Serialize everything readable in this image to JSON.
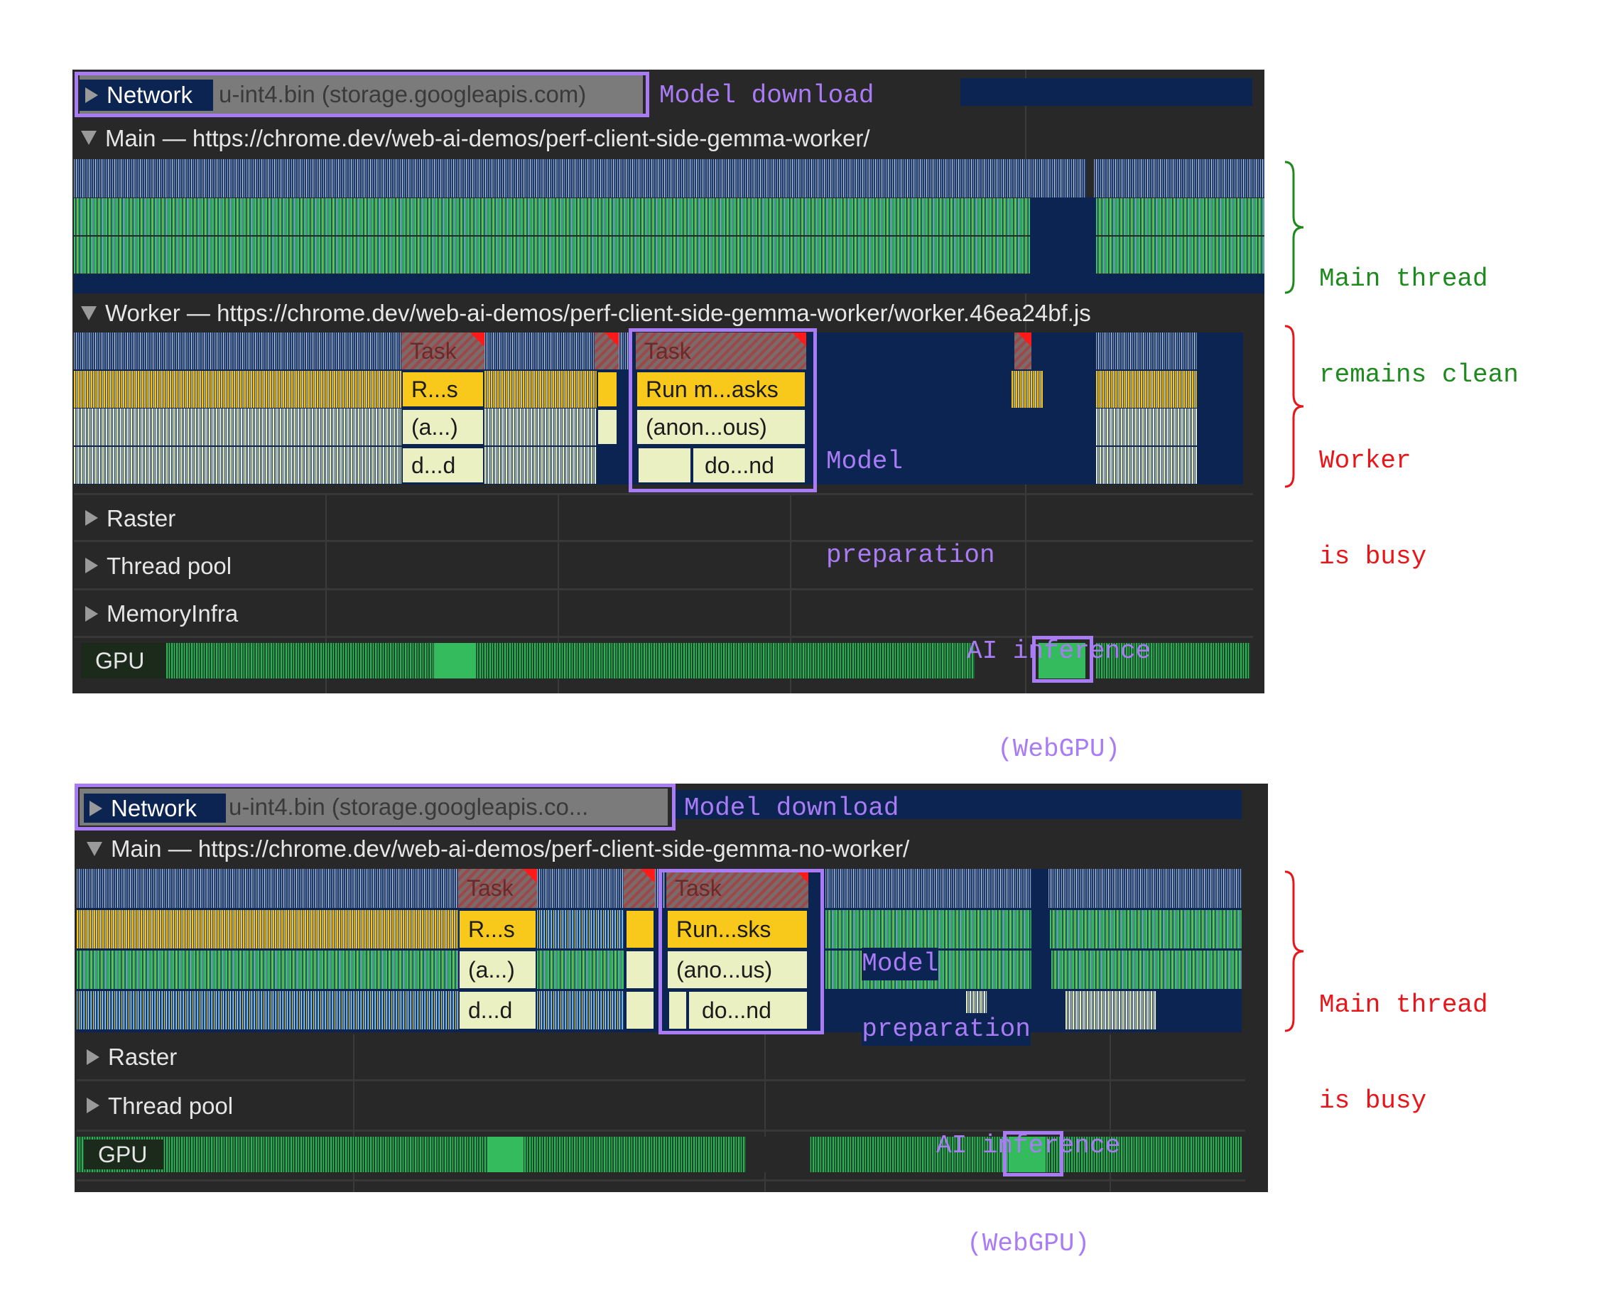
{
  "colors": {
    "highlight": "#a97cf5",
    "clean_annotation": "#1e8a1e",
    "busy_annotation": "#e8161a",
    "panel_background": "#282828",
    "track_background": "#0b2452",
    "task_yellow": "#f8c91a",
    "task_cream": "#eaf0c2",
    "gpu_green": "#33bb5d"
  },
  "with_worker": {
    "network": {
      "label": "Network",
      "request": "u-int4.bin (storage.googleapis.com)",
      "icon": "triangle-right-icon"
    },
    "main_header": "Main — https://chrome.dev/web-ai-demos/perf-client-side-gemma-worker/",
    "worker_header": "Worker — https://chrome.dev/web-ai-demos/perf-client-side-gemma-worker/worker.46ea24bf.js",
    "flame": {
      "task1": "Task",
      "run1": "R...s",
      "anon1": "(a...)",
      "do1": "d...d",
      "task2": "Task",
      "run2": "Run m...asks",
      "anon2": "(anon...ous)",
      "do2": "do...nd"
    },
    "tracks": {
      "raster": "Raster",
      "thread_pool": "Thread pool",
      "memory": "MemoryInfra",
      "gpu": "GPU"
    },
    "annotations": {
      "model_download": "Model download",
      "model_preparation_1": "Model",
      "model_preparation_2": "preparation",
      "ai_inference_1": "AI inference",
      "ai_inference_2": "(WebGPU)",
      "side_1": "Main thread",
      "side_2": "remains clean",
      "side_3": "Worker",
      "side_4": "is busy"
    }
  },
  "no_worker": {
    "network": {
      "label": "Network",
      "request": "u-int4.bin (storage.googleapis.co...",
      "icon": "triangle-right-icon"
    },
    "main_header": "Main — https://chrome.dev/web-ai-demos/perf-client-side-gemma-no-worker/",
    "flame": {
      "task1": "Task",
      "run1": "R...s",
      "anon1": "(a...)",
      "do1": "d...d",
      "task2": "Task",
      "run2": "Run...sks",
      "anon2": "(ano...us)",
      "do2": "do...nd"
    },
    "tracks": {
      "raster": "Raster",
      "thread_pool": "Thread pool",
      "gpu": "GPU"
    },
    "annotations": {
      "model_download": "Model download",
      "model_preparation_1": "Model",
      "model_preparation_2": "preparation",
      "ai_inference_1": "AI inference",
      "ai_inference_2": "(WebGPU)",
      "side_1": "Main thread",
      "side_2": "is busy"
    }
  }
}
